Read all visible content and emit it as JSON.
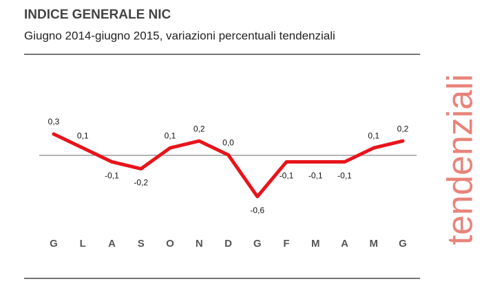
{
  "chart_data": {
    "type": "line",
    "title": "INDICE GENERALE NIC",
    "subtitle": "Giugno 2014-giugno 2015, variazioni percentuali tendenziali",
    "side_label": "tendenziali",
    "categories": [
      "G",
      "L",
      "A",
      "S",
      "O",
      "N",
      "D",
      "G",
      "F",
      "M",
      "A",
      "M",
      "G"
    ],
    "values": [
      0.3,
      0.1,
      -0.1,
      -0.2,
      0.1,
      0.2,
      0.0,
      -0.6,
      -0.1,
      -0.1,
      -0.1,
      0.1,
      0.2
    ],
    "value_labels": [
      "0,3",
      "0,1",
      "-0,1",
      "-0,2",
      "0,1",
      "0,2",
      "0,0",
      "-0,6",
      "-0,1",
      "-0,1",
      "-0,1",
      "0,1",
      "0,2"
    ],
    "color": "#e8141b"
  }
}
